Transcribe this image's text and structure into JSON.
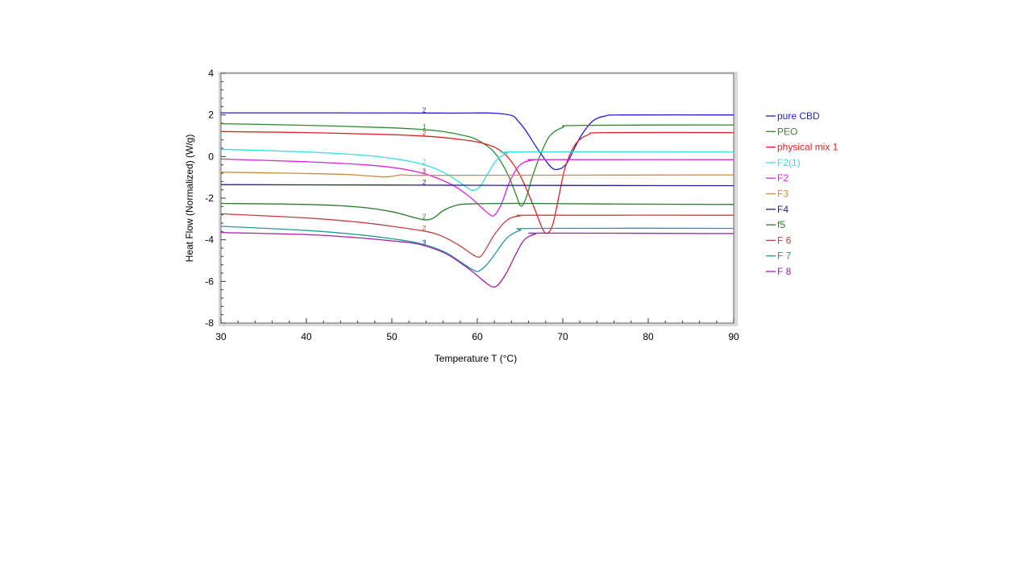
{
  "chart_data": {
    "type": "line",
    "xlabel": "Temperature T (°C)",
    "ylabel": "Heat Flow (Normalized)  (W/g)",
    "xlim": [
      30,
      90
    ],
    "ylim": [
      -8,
      4
    ],
    "x_ticks": [
      "30",
      "40",
      "50",
      "60",
      "70",
      "80",
      "90"
    ],
    "y_ticks": [
      "4",
      "2",
      "0",
      "-2",
      "-4",
      "-6",
      "-8"
    ],
    "grid": false,
    "legend_position": "right",
    "series": [
      {
        "name": "pure CBD",
        "color": "#1f1fd6",
        "marker": "2",
        "marker_x": 53.8,
        "points": [
          [
            30,
            2.1
          ],
          [
            55,
            2.09
          ],
          [
            63,
            2.05
          ],
          [
            65,
            1.6
          ],
          [
            67,
            0.4
          ],
          [
            68.5,
            -0.45
          ],
          [
            69.4,
            -0.62
          ],
          [
            70.5,
            -0.3
          ],
          [
            72,
            0.9
          ],
          [
            73.5,
            1.7
          ],
          [
            75,
            1.95
          ],
          [
            77,
            2.0
          ],
          [
            90,
            2.0
          ]
        ]
      },
      {
        "name": "PEO",
        "color": "#2a8a2a",
        "marker": "1",
        "marker_x": 53.8,
        "points": [
          [
            30,
            1.58
          ],
          [
            40,
            1.5
          ],
          [
            50,
            1.38
          ],
          [
            55,
            1.25
          ],
          [
            58,
            1.05
          ],
          [
            60,
            0.8
          ],
          [
            62,
            0.2
          ],
          [
            63.5,
            -0.8
          ],
          [
            64.5,
            -1.8
          ],
          [
            65.1,
            -2.38
          ],
          [
            65.7,
            -2.0
          ],
          [
            66.5,
            -0.9
          ],
          [
            67.5,
            0.2
          ],
          [
            68.5,
            1.0
          ],
          [
            70,
            1.4
          ],
          [
            72,
            1.5
          ],
          [
            90,
            1.52
          ]
        ]
      },
      {
        "name": "physical mix 1",
        "color": "#e02020",
        "marker": "2",
        "marker_x": 53.8,
        "points": [
          [
            30,
            1.2
          ],
          [
            40,
            1.15
          ],
          [
            50,
            1.05
          ],
          [
            55,
            0.95
          ],
          [
            58,
            0.82
          ],
          [
            60,
            0.7
          ],
          [
            62,
            0.45
          ],
          [
            63.5,
            0.0
          ],
          [
            65,
            -0.9
          ],
          [
            66.5,
            -2.3
          ],
          [
            67.5,
            -3.35
          ],
          [
            68.1,
            -3.7
          ],
          [
            68.8,
            -3.3
          ],
          [
            69.5,
            -2.0
          ],
          [
            70.3,
            -0.5
          ],
          [
            71.5,
            0.6
          ],
          [
            73,
            1.05
          ],
          [
            75,
            1.15
          ],
          [
            90,
            1.15
          ]
        ]
      },
      {
        "name": "F2(1)",
        "color": "#30e0e0",
        "marker": "2",
        "marker_x": 53.8,
        "points": [
          [
            30,
            0.35
          ],
          [
            40,
            0.22
          ],
          [
            47,
            0.05
          ],
          [
            51,
            -0.15
          ],
          [
            54,
            -0.42
          ],
          [
            56,
            -0.75
          ],
          [
            58,
            -1.25
          ],
          [
            59,
            -1.55
          ],
          [
            59.6,
            -1.62
          ],
          [
            60.3,
            -1.45
          ],
          [
            61.2,
            -0.85
          ],
          [
            62.3,
            -0.15
          ],
          [
            63.5,
            0.15
          ],
          [
            65,
            0.22
          ],
          [
            90,
            0.22
          ]
        ]
      },
      {
        "name": "F2",
        "color": "#e020e0",
        "marker": "2",
        "marker_x": 53.8,
        "points": [
          [
            30,
            -0.12
          ],
          [
            40,
            -0.25
          ],
          [
            47,
            -0.4
          ],
          [
            51,
            -0.58
          ],
          [
            54,
            -0.85
          ],
          [
            57,
            -1.35
          ],
          [
            59,
            -1.9
          ],
          [
            60.5,
            -2.45
          ],
          [
            61.5,
            -2.8
          ],
          [
            62.0,
            -2.82
          ],
          [
            62.8,
            -2.3
          ],
          [
            63.8,
            -1.2
          ],
          [
            65,
            -0.4
          ],
          [
            66.5,
            -0.17
          ],
          [
            68,
            -0.15
          ],
          [
            90,
            -0.15
          ]
        ]
      },
      {
        "name": "F3",
        "color": "#d08a40",
        "marker": "2",
        "marker_x": 53.8,
        "points": [
          [
            30,
            -0.75
          ],
          [
            38,
            -0.8
          ],
          [
            44,
            -0.85
          ],
          [
            47,
            -0.92
          ],
          [
            49,
            -0.98
          ],
          [
            50,
            -0.95
          ],
          [
            51,
            -0.88
          ],
          [
            52,
            -0.9
          ],
          [
            54,
            -0.9
          ],
          [
            56,
            -0.9
          ],
          [
            90,
            -0.88
          ]
        ]
      },
      {
        "name": "F4",
        "color": "#20208a",
        "marker": "2",
        "marker_x": 53.8,
        "points": [
          [
            30,
            -1.35
          ],
          [
            50,
            -1.37
          ],
          [
            60,
            -1.38
          ],
          [
            70,
            -1.39
          ],
          [
            90,
            -1.4
          ]
        ]
      },
      {
        "name": "f5",
        "color": "#2a7a2a",
        "marker": "2",
        "marker_x": 53.8,
        "points": [
          [
            30,
            -2.25
          ],
          [
            40,
            -2.3
          ],
          [
            46,
            -2.42
          ],
          [
            50,
            -2.65
          ],
          [
            52.5,
            -2.92
          ],
          [
            54,
            -3.05
          ],
          [
            55,
            -2.92
          ],
          [
            56,
            -2.6
          ],
          [
            57.5,
            -2.35
          ],
          [
            59,
            -2.28
          ],
          [
            65,
            -2.25
          ],
          [
            75,
            -2.28
          ],
          [
            90,
            -2.3
          ]
        ]
      },
      {
        "name": "F 6",
        "color": "#c04040",
        "marker": "2",
        "marker_x": 53.8,
        "points": [
          [
            30,
            -2.75
          ],
          [
            40,
            -2.95
          ],
          [
            46,
            -3.15
          ],
          [
            50,
            -3.35
          ],
          [
            54,
            -3.6
          ],
          [
            56,
            -3.85
          ],
          [
            58,
            -4.3
          ],
          [
            59.5,
            -4.72
          ],
          [
            60.3,
            -4.82
          ],
          [
            61,
            -4.45
          ],
          [
            62,
            -3.75
          ],
          [
            63.5,
            -3.05
          ],
          [
            65,
            -2.85
          ],
          [
            67,
            -2.82
          ],
          [
            90,
            -2.82
          ]
        ]
      },
      {
        "name": "F 7",
        "color": "#209a9a",
        "marker": "3",
        "marker_x": 53.8,
        "points": [
          [
            30,
            -3.35
          ],
          [
            40,
            -3.55
          ],
          [
            46,
            -3.75
          ],
          [
            50,
            -3.95
          ],
          [
            53,
            -4.15
          ],
          [
            56,
            -4.55
          ],
          [
            58,
            -5.05
          ],
          [
            59.5,
            -5.45
          ],
          [
            60.2,
            -5.5
          ],
          [
            61.2,
            -5.15
          ],
          [
            62.3,
            -4.55
          ],
          [
            63.5,
            -3.9
          ],
          [
            65,
            -3.55
          ],
          [
            67,
            -3.45
          ],
          [
            90,
            -3.45
          ]
        ]
      },
      {
        "name": "F 8",
        "color": "#a020a0",
        "marker": "2",
        "marker_x": 53.8,
        "points": [
          [
            30,
            -3.65
          ],
          [
            40,
            -3.75
          ],
          [
            46,
            -3.9
          ],
          [
            50,
            -4.05
          ],
          [
            53,
            -4.2
          ],
          [
            56,
            -4.6
          ],
          [
            58,
            -5.1
          ],
          [
            59.5,
            -5.55
          ],
          [
            60.8,
            -6.0
          ],
          [
            61.7,
            -6.25
          ],
          [
            62.4,
            -6.18
          ],
          [
            63.4,
            -5.6
          ],
          [
            64.5,
            -4.7
          ],
          [
            65.5,
            -4.0
          ],
          [
            66.8,
            -3.72
          ],
          [
            68,
            -3.68
          ],
          [
            90,
            -3.7
          ]
        ]
      }
    ]
  }
}
